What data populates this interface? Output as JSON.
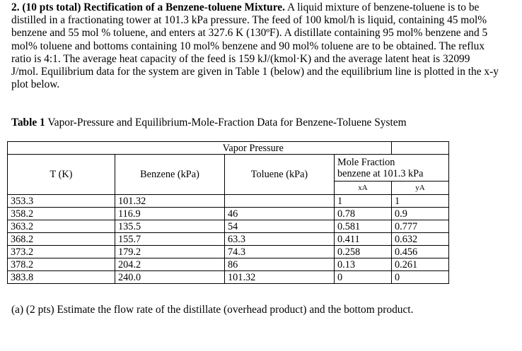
{
  "problem": {
    "heading": "2. (10 pts total) Rectification of a Benzene-toluene Mixture.",
    "text": "A liquid mixture of benzene-toluene is to be distilled in a fractionating tower at 101.3 kPa pressure. The feed of 100 kmol/h is liquid, containing 45 mol% benzene and 55 mol % toluene, and enters at 327.6 K (130ºF). A distillate containing 95 mol% benzene and 5 mol% toluene and bottoms containing 10 mol% benzene and 90 mol% toluene are to be obtained. The reflux ratio is 4:1. The average heat capacity of the feed is 159 kJ/(kmol·K) and the average latent heat is 32099 J/mol. Equilibrium data for the system are given in Table 1 (below) and the equilibrium line is plotted in the x-y plot below."
  },
  "table_caption": {
    "label": "Table 1",
    "title": "Vapor-Pressure and Equilibrium-Mole-Fraction Data for Benzene-Toluene System"
  },
  "table": {
    "group_header": "Vapor Pressure",
    "col_t": "T (K)",
    "col_benzene": "Benzene (kPa)",
    "col_toluene": "Toluene (kPa)",
    "col_mf_line1": "Mole Fraction",
    "col_mf_line2": "benzene at 101.3 kPa",
    "col_xa": "xA",
    "col_ya": "yA",
    "rows": [
      {
        "t": "353.3",
        "pb": "101.32",
        "pt": "",
        "xa": "1",
        "ya": "1"
      },
      {
        "t": "358.2",
        "pb": "116.9",
        "pt": "46",
        "xa": "0.78",
        "ya": "0.9"
      },
      {
        "t": "363.2",
        "pb": "135.5",
        "pt": "54",
        "xa": "0.581",
        "ya": "0.777"
      },
      {
        "t": "368.2",
        "pb": "155.7",
        "pt": "63.3",
        "xa": "0.411",
        "ya": "0.632"
      },
      {
        "t": "373.2",
        "pb": "179.2",
        "pt": "74.3",
        "xa": "0.258",
        "ya": "0.456"
      },
      {
        "t": "378.2",
        "pb": "204.2",
        "pt": "86",
        "xa": "0.13",
        "ya": "0.261"
      },
      {
        "t": "383.8",
        "pb": "240.0",
        "pt": "101.32",
        "xa": "0",
        "ya": "0"
      }
    ]
  },
  "question_a": "(a) (2 pts) Estimate the flow rate of the distillate (overhead product) and the bottom product."
}
